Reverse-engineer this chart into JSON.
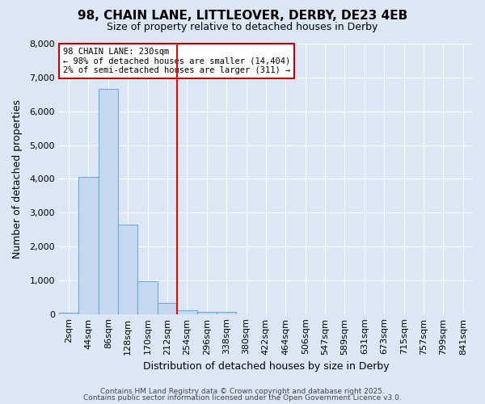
{
  "title1": "98, CHAIN LANE, LITTLEOVER, DERBY, DE23 4EB",
  "title2": "Size of property relative to detached houses in Derby",
  "xlabel": "Distribution of detached houses by size in Derby",
  "ylabel": "Number of detached properties",
  "categories": [
    "2sqm",
    "44sqm",
    "86sqm",
    "128sqm",
    "170sqm",
    "212sqm",
    "254sqm",
    "296sqm",
    "338sqm",
    "380sqm",
    "422sqm",
    "464sqm",
    "506sqm",
    "547sqm",
    "589sqm",
    "631sqm",
    "673sqm",
    "715sqm",
    "757sqm",
    "799sqm",
    "841sqm"
  ],
  "values": [
    50,
    4050,
    6650,
    2650,
    980,
    330,
    120,
    70,
    60,
    0,
    0,
    0,
    0,
    0,
    0,
    0,
    0,
    0,
    0,
    0,
    0
  ],
  "bar_color": "#c5d8f0",
  "bar_edgecolor": "#6baed6",
  "marker_line_color": "#ff0000",
  "background_color": "#dce6f5",
  "grid_color": "#ffffff",
  "annotation_line1": "98 CHAIN LANE: 230sqm",
  "annotation_line2": "← 98% of detached houses are smaller (14,404)",
  "annotation_line3": "2% of semi-detached houses are larger (311) →",
  "annotation_box_color": "#ffffff",
  "annotation_box_edgecolor": "#cc0000",
  "ylim": [
    0,
    8000
  ],
  "yticks": [
    0,
    1000,
    2000,
    3000,
    4000,
    5000,
    6000,
    7000,
    8000
  ],
  "footer1": "Contains HM Land Registry data © Crown copyright and database right 2025.",
  "footer2": "Contains public sector information licensed under the Open Government Licence v3.0."
}
